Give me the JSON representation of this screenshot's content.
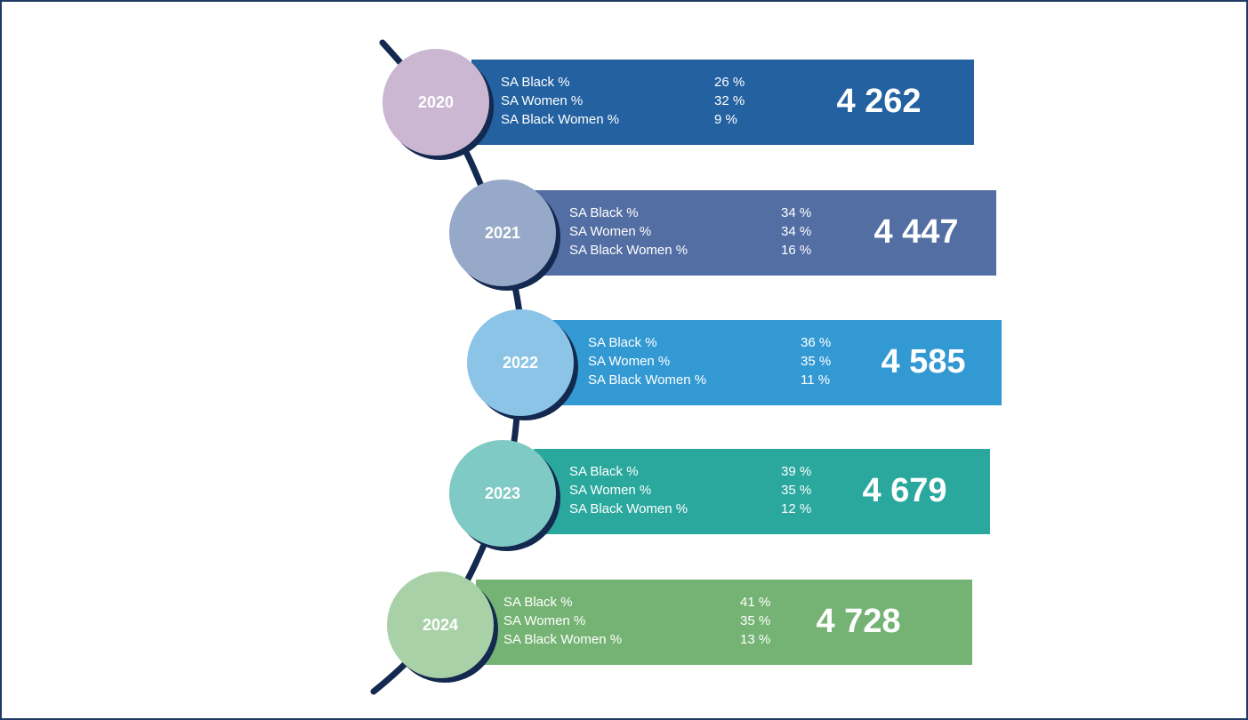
{
  "items": [
    {
      "year": "2020",
      "metrics": [
        {
          "label": "SA Black %",
          "value": "26 %"
        },
        {
          "label": "SA Women %",
          "value": "32 %"
        },
        {
          "label": "SA Black Women %",
          "value": "9 %"
        }
      ],
      "total": "4 262"
    },
    {
      "year": "2021",
      "metrics": [
        {
          "label": "SA Black %",
          "value": "34 %"
        },
        {
          "label": "SA Women %",
          "value": "34 %"
        },
        {
          "label": "SA Black Women %",
          "value": "16 %"
        }
      ],
      "total": "4 447"
    },
    {
      "year": "2022",
      "metrics": [
        {
          "label": "SA Black %",
          "value": "36 %"
        },
        {
          "label": "SA Women %",
          "value": "35 %"
        },
        {
          "label": "SA Black Women %",
          "value": "11 %"
        }
      ],
      "total": "4 585"
    },
    {
      "year": "2023",
      "metrics": [
        {
          "label": "SA Black %",
          "value": "39 %"
        },
        {
          "label": "SA Women %",
          "value": "35 %"
        },
        {
          "label": "SA Black Women %",
          "value": "12 %"
        }
      ],
      "total": "4 679"
    },
    {
      "year": "2024",
      "metrics": [
        {
          "label": "SA Black %",
          "value": "41 %"
        },
        {
          "label": "SA Women %",
          "value": "35 %"
        },
        {
          "label": "SA Black Women %",
          "value": "13 %"
        }
      ],
      "total": "4 728"
    }
  ]
}
